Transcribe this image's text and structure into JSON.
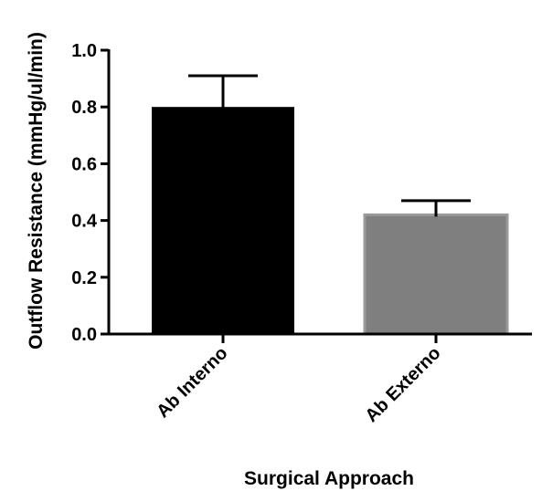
{
  "chart_data": {
    "type": "bar",
    "title": "",
    "xlabel": "Surgical Approach",
    "ylabel": "Outflow Resistance (mmHg/ul/min)",
    "ylim": [
      0,
      1.0
    ],
    "yticks": [
      "0.0",
      "0.2",
      "0.4",
      "0.6",
      "0.8",
      "1.0"
    ],
    "categories": [
      "Ab Interno",
      "Ab Externo"
    ],
    "values": [
      0.8,
      0.42
    ],
    "error_upper": [
      0.91,
      0.47
    ],
    "colors": [
      "#000000",
      "#7f7f7f"
    ],
    "grid": false,
    "legend": "none"
  }
}
